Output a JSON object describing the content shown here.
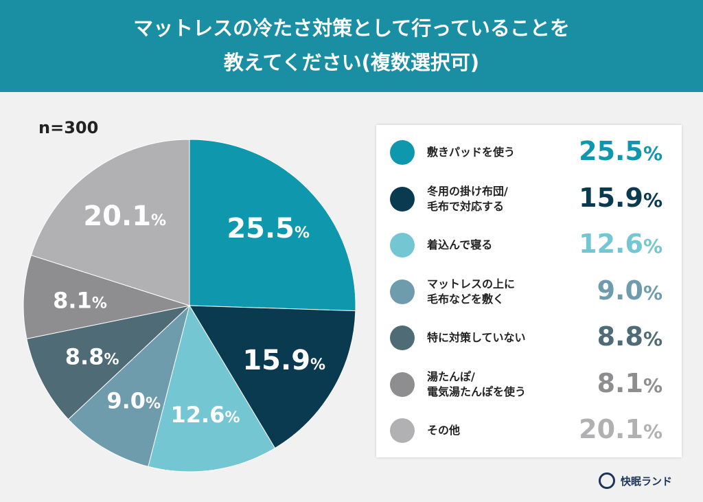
{
  "header": {
    "title_line1": "マットレスの冷たさ対策として行っていることを",
    "title_line2": "教えてください(複数選択可)"
  },
  "sample": "n=300",
  "chart_data": {
    "type": "pie",
    "unit": "%",
    "categories": [
      "敷きパッドを使う",
      "冬用の掛け布団/\n毛布で対応する",
      "着込んで寝る",
      "マットレスの上に\n毛布などを敷く",
      "特に対策していない",
      "湯たんぽ/\n電気湯たんぽを使う",
      "その他"
    ],
    "values": [
      25.5,
      15.9,
      12.6,
      9.0,
      8.8,
      8.1,
      20.1
    ],
    "labels": [
      "25.5",
      "15.9",
      "12.6",
      "9.0",
      "8.8",
      "8.1",
      "20.1"
    ],
    "colors": [
      "#0f97ad",
      "#0a3a50",
      "#74c6d3",
      "#6e9cad",
      "#4f6b75",
      "#8e8e90",
      "#b1b1b3"
    ],
    "start": "top",
    "direction": "clockwise",
    "legend": "right"
  },
  "logo": {
    "text": "快眠ランド"
  }
}
